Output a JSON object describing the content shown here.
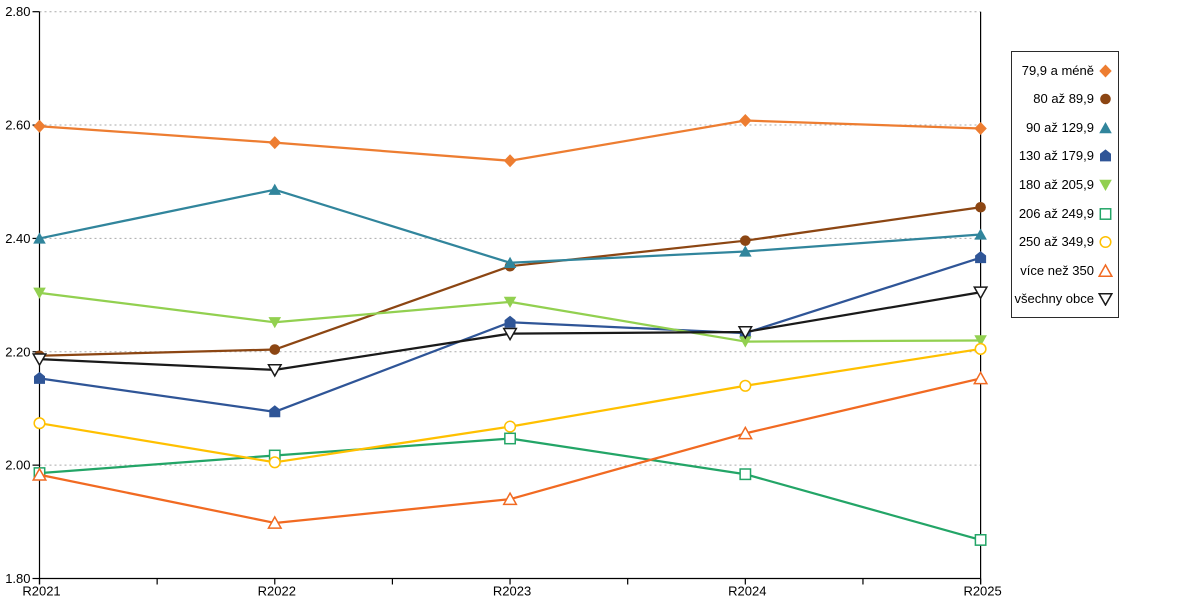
{
  "chart_data": {
    "type": "line",
    "title": "",
    "xlabel": "",
    "ylabel": "",
    "categories": [
      "R2021",
      "R2022",
      "R2023",
      "R2024",
      "R2025"
    ],
    "ylim": [
      1.8,
      2.8
    ],
    "ytick_step": 0.2,
    "ytick_labels": [
      "1.80",
      "2.00",
      "2.20",
      "2.40",
      "2.60",
      "2.80"
    ],
    "grid": "horizontal-dotted",
    "legend_position": "right",
    "axis_color": "#000000",
    "gridline_color": "#aaaaaa",
    "series": [
      {
        "name": "79,9 a méně",
        "marker": "diamond",
        "fill": "solid",
        "color": "#ED7D31",
        "values": [
          2.598,
          2.569,
          2.537,
          2.608,
          2.594
        ]
      },
      {
        "name": "80 až 89,9",
        "marker": "circle",
        "fill": "solid",
        "color": "#8C4613",
        "values": [
          2.193,
          2.204,
          2.351,
          2.396,
          2.455
        ]
      },
      {
        "name": "90 až 129,9",
        "marker": "triangle-up",
        "fill": "solid",
        "color": "#31859C",
        "values": [
          2.4,
          2.486,
          2.357,
          2.377,
          2.407
        ]
      },
      {
        "name": "130 až 179,9",
        "marker": "pentagon",
        "fill": "solid",
        "color": "#2F5597",
        "values": [
          2.153,
          2.094,
          2.252,
          2.233,
          2.366
        ]
      },
      {
        "name": "180 až 205,9",
        "marker": "triangle-down",
        "fill": "solid",
        "color": "#92D050",
        "values": [
          2.304,
          2.252,
          2.288,
          2.218,
          2.22
        ]
      },
      {
        "name": "206 až 249,9",
        "marker": "square",
        "fill": "hollow",
        "color": "#23A567",
        "values": [
          1.986,
          2.017,
          2.047,
          1.984,
          1.868
        ]
      },
      {
        "name": "250 až 349,9",
        "marker": "circle",
        "fill": "hollow",
        "color": "#FFC000",
        "values": [
          2.074,
          2.005,
          2.068,
          2.14,
          2.205
        ]
      },
      {
        "name": "více než 350",
        "marker": "triangle-up",
        "fill": "hollow",
        "color": "#F16A22",
        "values": [
          1.983,
          1.898,
          1.94,
          2.056,
          2.153
        ]
      },
      {
        "name": "všechny obce",
        "marker": "triangle-down",
        "fill": "hollow",
        "color": "#1A1A1A",
        "values": [
          2.187,
          2.168,
          2.232,
          2.235,
          2.305
        ]
      }
    ]
  }
}
